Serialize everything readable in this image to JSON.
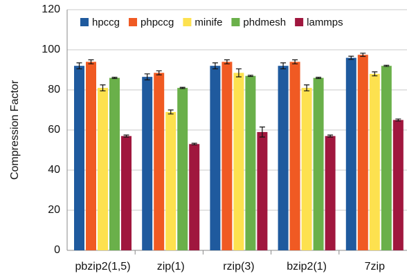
{
  "chart_data": {
    "type": "bar",
    "y_label": "Compression Factor",
    "categories": [
      "pbzip2(1,5)",
      "zip(1)",
      "rzip(3)",
      "bzip2(1)",
      "7zip"
    ],
    "series": [
      {
        "name": "hpccg",
        "color": "#1f5a9e",
        "values": [
          92,
          86.5,
          92,
          92,
          96
        ],
        "errors": [
          1.5,
          1.5,
          1.5,
          1.5,
          0.8
        ]
      },
      {
        "name": "phpccg",
        "color": "#f05a23",
        "values": [
          94,
          88.5,
          94,
          94,
          97.5
        ],
        "errors": [
          1,
          1,
          1,
          1,
          0.8
        ]
      },
      {
        "name": "minife",
        "color": "#fde14f",
        "values": [
          81,
          69,
          88.5,
          81,
          88
        ],
        "errors": [
          1.5,
          1,
          2,
          1.5,
          1
        ]
      },
      {
        "name": "phdmesh",
        "color": "#6ab04a",
        "values": [
          86,
          81,
          87,
          86,
          92
        ],
        "errors": [
          0.3,
          0.3,
          0.3,
          0.3,
          0.3
        ]
      },
      {
        "name": "lammps",
        "color": "#a0173e",
        "values": [
          57,
          53,
          59,
          57,
          65
        ],
        "errors": [
          0.5,
          0.4,
          2.5,
          0.5,
          0.5
        ]
      }
    ],
    "ylim": [
      0,
      120
    ],
    "yticks": [
      0,
      20,
      40,
      60,
      80,
      100,
      120
    ],
    "grid": true,
    "legend": "top"
  }
}
